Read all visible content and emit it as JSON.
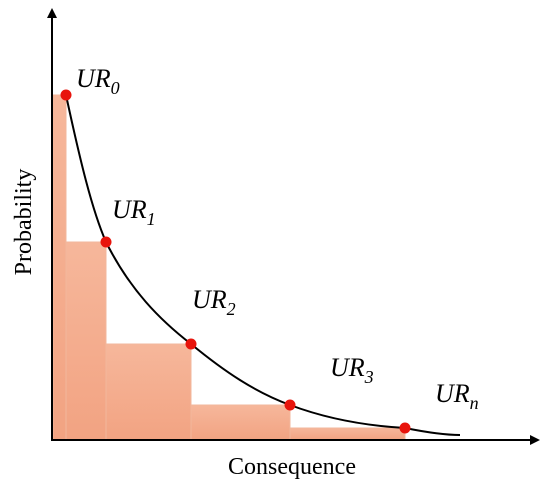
{
  "axes": {
    "x_label": "Consequence",
    "y_label": "Probability"
  },
  "points": [
    {
      "base": "UR",
      "sub": "0"
    },
    {
      "base": "UR",
      "sub": "1"
    },
    {
      "base": "UR",
      "sub": "2"
    },
    {
      "base": "UR",
      "sub": "3"
    },
    {
      "base": "UR",
      "sub": "n"
    }
  ]
}
